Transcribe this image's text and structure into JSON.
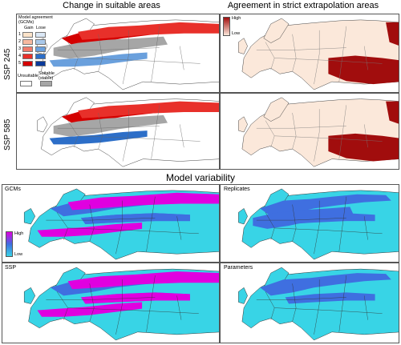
{
  "headers": {
    "change": "Change in suitable areas",
    "agreement": "Agreement in strict extrapolation areas",
    "variability": "Model variability"
  },
  "rows": [
    "SSP 245",
    "SSP 585"
  ],
  "legend": {
    "title": "Model agreement (GCMs)",
    "gain": "Gain",
    "lose": "Lose",
    "levels": [
      "1",
      "2",
      "3",
      "4",
      "5"
    ],
    "unsuitable": "Unsuitable",
    "suitable": "Suitable (stable)",
    "gain_colors": [
      "#fbe3c9",
      "#f7b9a0",
      "#f07a6a",
      "#e8302a",
      "#d40000"
    ],
    "lose_colors": [
      "#dbe8f6",
      "#a9c8ea",
      "#6aa0dd",
      "#2c6ec8",
      "#0a3a9a"
    ]
  },
  "agreement_scale": {
    "high": "High",
    "low": "Low"
  },
  "variability_scale": {
    "high": "High",
    "low": "Low"
  },
  "variability_panels": [
    "GCMs",
    "Replicates",
    "SSP",
    "Parameters"
  ],
  "colors": {
    "land": "#ffffff",
    "suitable": "#a6a6a6",
    "extrap_low": "#fbe8da",
    "extrap_high": "#a10d0d",
    "var_low": "#38d4e6",
    "var_mid": "#3f6fe0",
    "var_high": "#e000e0"
  }
}
